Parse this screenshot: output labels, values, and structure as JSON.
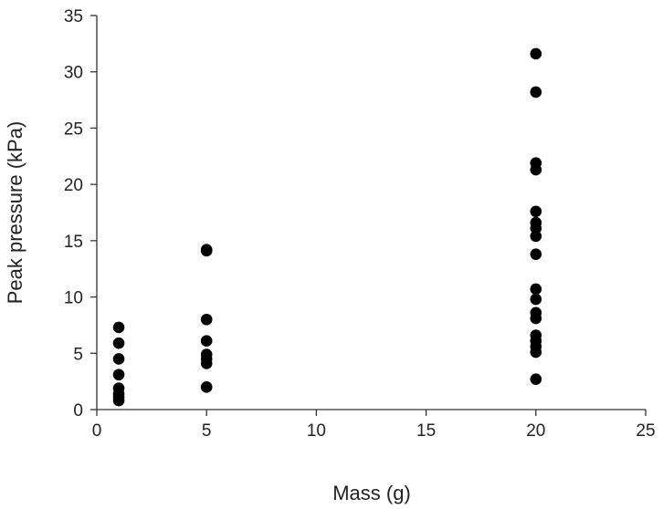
{
  "chart_data": {
    "type": "scatter",
    "title": "",
    "xlabel": "Mass (g)",
    "ylabel": "Peak pressure (kPa)",
    "xlim": [
      0,
      25
    ],
    "ylim": [
      0,
      35
    ],
    "xticks": [
      0,
      5,
      10,
      15,
      20,
      25
    ],
    "yticks": [
      0,
      5,
      10,
      15,
      20,
      25,
      30,
      35
    ],
    "grid": false,
    "legend": "none",
    "marker_color": "#000000",
    "series": [
      {
        "points": [
          {
            "x": 1,
            "y": 7.3
          },
          {
            "x": 1,
            "y": 5.9
          },
          {
            "x": 1,
            "y": 4.5
          },
          {
            "x": 1,
            "y": 3.1
          },
          {
            "x": 1,
            "y": 1.9
          },
          {
            "x": 1,
            "y": 1.4
          },
          {
            "x": 1,
            "y": 1.1
          },
          {
            "x": 1,
            "y": 0.8
          },
          {
            "x": 5,
            "y": 14.2
          },
          {
            "x": 5,
            "y": 14.1
          },
          {
            "x": 5,
            "y": 8.0
          },
          {
            "x": 5,
            "y": 6.1
          },
          {
            "x": 5,
            "y": 4.9
          },
          {
            "x": 5,
            "y": 4.5
          },
          {
            "x": 5,
            "y": 4.1
          },
          {
            "x": 5,
            "y": 2.0
          },
          {
            "x": 20,
            "y": 31.6
          },
          {
            "x": 20,
            "y": 28.2
          },
          {
            "x": 20,
            "y": 21.9
          },
          {
            "x": 20,
            "y": 21.3
          },
          {
            "x": 20,
            "y": 17.6
          },
          {
            "x": 20,
            "y": 16.6
          },
          {
            "x": 20,
            "y": 16.1
          },
          {
            "x": 20,
            "y": 15.4
          },
          {
            "x": 20,
            "y": 13.8
          },
          {
            "x": 20,
            "y": 10.7
          },
          {
            "x": 20,
            "y": 9.8
          },
          {
            "x": 20,
            "y": 8.6
          },
          {
            "x": 20,
            "y": 8.1
          },
          {
            "x": 20,
            "y": 6.6
          },
          {
            "x": 20,
            "y": 6.1
          },
          {
            "x": 20,
            "y": 5.6
          },
          {
            "x": 20,
            "y": 5.1
          },
          {
            "x": 20,
            "y": 2.7
          }
        ]
      }
    ]
  }
}
